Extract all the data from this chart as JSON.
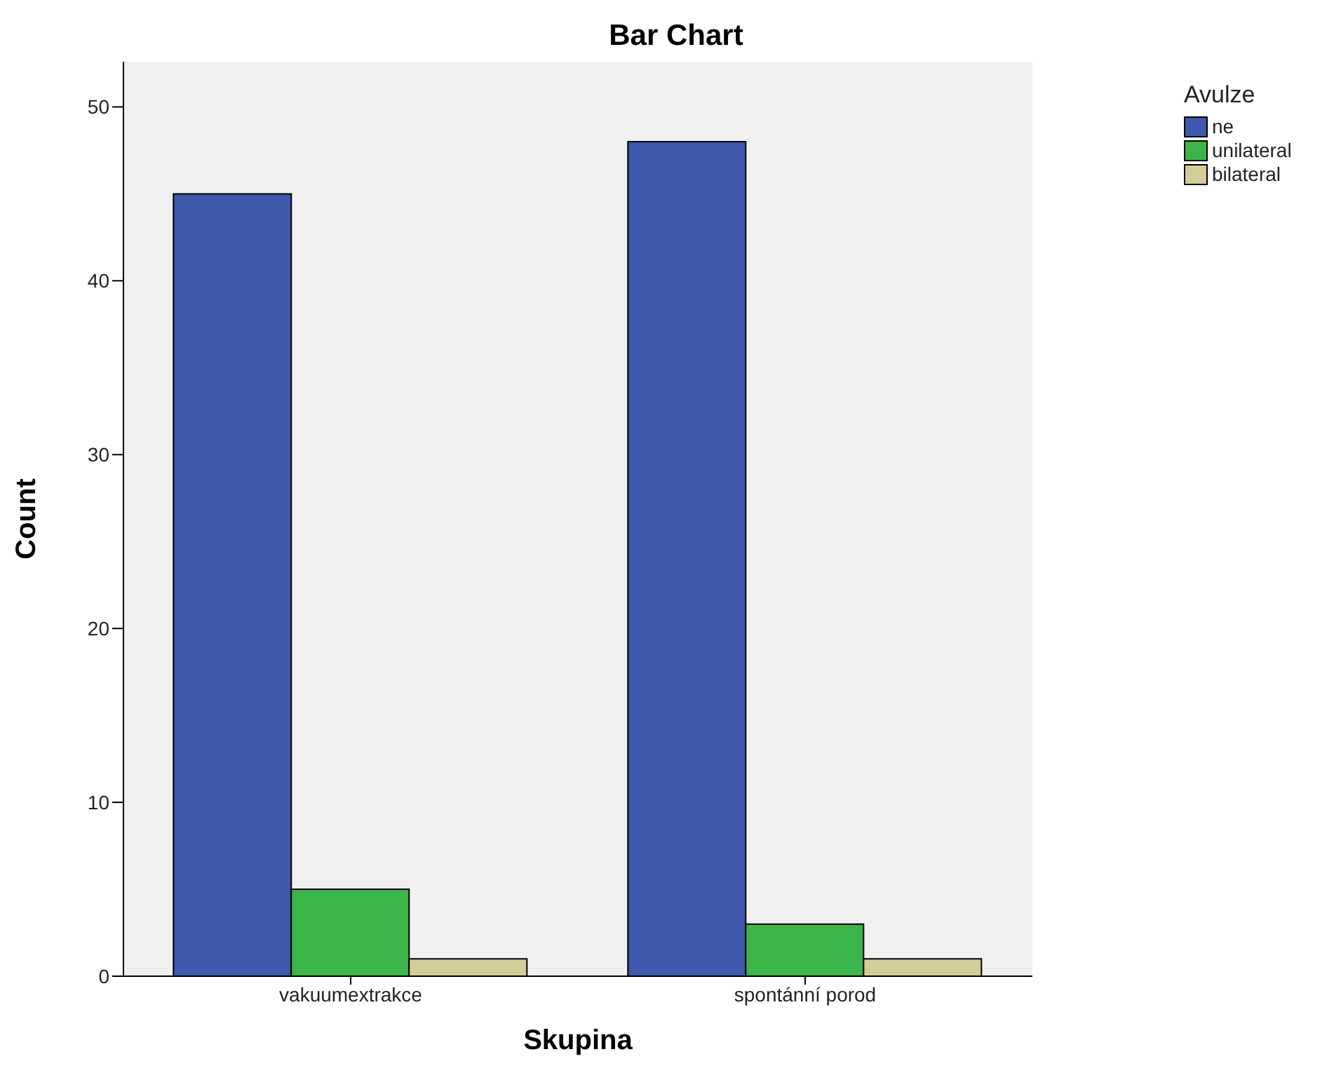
{
  "chart_data": {
    "type": "bar",
    "title": "Bar Chart",
    "xlabel": "Skupina",
    "ylabel": "Count",
    "legend_title": "Avulze",
    "categories": [
      "vakuumextrakce",
      "spontánní porod"
    ],
    "series": [
      {
        "name": "ne",
        "color": "#3e58ac",
        "values": [
          45,
          48
        ]
      },
      {
        "name": "unilateral",
        "color": "#3cb54a",
        "values": [
          5,
          3
        ]
      },
      {
        "name": "bilateral",
        "color": "#d4cd98",
        "values": [
          1,
          1
        ]
      }
    ],
    "ylim": [
      0,
      52.6
    ],
    "yticks": [
      0,
      10,
      20,
      30,
      40,
      50
    ],
    "grid": false,
    "legend": "right"
  }
}
